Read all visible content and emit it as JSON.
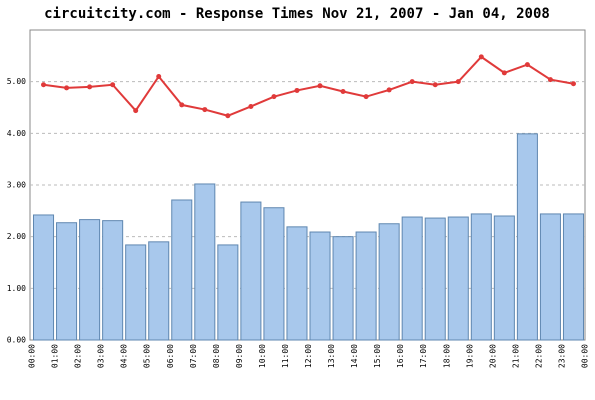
{
  "chart_data": {
    "type": "bar",
    "title": "circuitcity.com - Response Times Nov 21, 2007 - Jan 04, 2008",
    "xtick_labels": [
      "00:00",
      "01:00",
      "02:00",
      "03:00",
      "04:00",
      "05:00",
      "06:00",
      "07:00",
      "08:00",
      "09:00",
      "10:00",
      "11:00",
      "12:00",
      "13:00",
      "14:00",
      "15:00",
      "16:00",
      "17:00",
      "18:00",
      "19:00",
      "20:00",
      "21:00",
      "22:00",
      "23:00",
      "00:00"
    ],
    "bars": {
      "color": "#a8c8ec",
      "values": [
        2.42,
        2.27,
        2.33,
        2.31,
        1.84,
        1.9,
        2.71,
        3.02,
        1.84,
        2.67,
        2.56,
        2.19,
        2.09,
        2.0,
        2.09,
        2.25,
        2.38,
        2.36,
        2.38,
        2.44,
        2.4,
        3.99,
        2.44,
        2.44
      ]
    },
    "line": {
      "color": "#e03a3a",
      "values": [
        4.94,
        4.88,
        4.9,
        4.94,
        4.44,
        5.1,
        4.55,
        4.46,
        4.34,
        4.52,
        4.71,
        4.83,
        4.92,
        4.81,
        4.71,
        4.84,
        5.0,
        4.94,
        5.0,
        5.48,
        5.17,
        5.33,
        5.04,
        4.96
      ]
    },
    "ylim": [
      0,
      6
    ],
    "yticks": [
      {
        "value": 0,
        "label": "0.00"
      },
      {
        "value": 1,
        "label": "1.00"
      },
      {
        "value": 2,
        "label": "2.00"
      },
      {
        "value": 3,
        "label": "3.00"
      },
      {
        "value": 4,
        "label": "4.00"
      },
      {
        "value": 5,
        "label": "5.00"
      }
    ],
    "grid": true
  }
}
